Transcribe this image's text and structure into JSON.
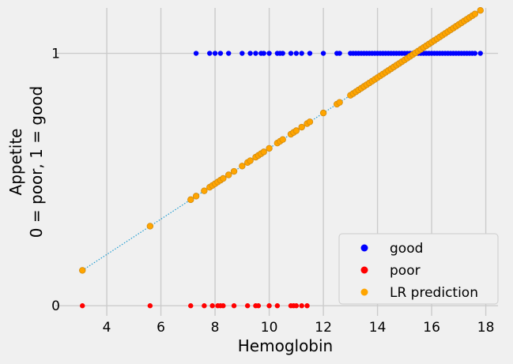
{
  "chart_data": {
    "type": "scatter",
    "title": "",
    "xlabel": "Hemoglobin",
    "ylabel_lines": [
      "Appetite",
      "0 = poor, 1 = good"
    ],
    "xlim": [
      2.1,
      18.45
    ],
    "ylim": [
      -0.04,
      1.18
    ],
    "xticks": [
      4,
      6,
      8,
      10,
      12,
      14,
      16,
      18
    ],
    "yticks": [
      0,
      1
    ],
    "grid": true,
    "legend_position": "bottom-right",
    "colors": {
      "good": "#0000ff",
      "poor": "#ff0000",
      "lr": "#ffa500",
      "lr_edge": "#d08a10",
      "line": "#1f9bd0",
      "grid": "#cbcbcb",
      "background": "#f0f0f0"
    },
    "series": [
      {
        "name": "good",
        "y": 1,
        "x": [
          7.3,
          7.8,
          8.0,
          8.2,
          8.5,
          9.0,
          9.3,
          9.5,
          9.7,
          9.8,
          10.0,
          10.3,
          10.4,
          10.5,
          10.8,
          11.0,
          11.2,
          11.5,
          12.0,
          12.5,
          12.6,
          13.0,
          13.1,
          13.2,
          13.3,
          13.4,
          13.5,
          13.6,
          13.7,
          13.8,
          13.9,
          14.0,
          14.1,
          14.2,
          14.3,
          14.4,
          14.5,
          14.6,
          14.7,
          14.8,
          14.9,
          15.0,
          15.1,
          15.2,
          15.3,
          15.4,
          15.5,
          15.6,
          15.7,
          15.8,
          15.9,
          16.0,
          16.1,
          16.2,
          16.3,
          16.4,
          16.5,
          16.6,
          16.7,
          16.8,
          16.9,
          17.0,
          17.1,
          17.2,
          17.3,
          17.4,
          17.5,
          17.6,
          17.8
        ]
      },
      {
        "name": "poor",
        "y": 0,
        "x": [
          3.1,
          5.6,
          7.1,
          7.6,
          7.9,
          8.1,
          8.2,
          8.3,
          8.7,
          9.2,
          9.5,
          9.6,
          10.0,
          10.3,
          10.8,
          10.9,
          11.0,
          11.2,
          11.4
        ]
      },
      {
        "name": "LR prediction",
        "line": {
          "x1": 3.1,
          "y1": 0.14,
          "x2": 17.8,
          "y2": 1.17
        },
        "x": [
          3.1,
          5.6,
          7.1,
          7.3,
          7.6,
          7.8,
          7.9,
          8.0,
          8.1,
          8.2,
          8.3,
          8.5,
          8.7,
          9.0,
          9.2,
          9.3,
          9.5,
          9.6,
          9.7,
          9.8,
          10.0,
          10.3,
          10.4,
          10.5,
          10.8,
          10.9,
          11.0,
          11.2,
          11.4,
          11.5,
          12.0,
          12.5,
          12.6,
          13.0,
          13.1,
          13.2,
          13.3,
          13.4,
          13.5,
          13.6,
          13.7,
          13.8,
          13.9,
          14.0,
          14.1,
          14.2,
          14.3,
          14.4,
          14.5,
          14.6,
          14.7,
          14.8,
          14.9,
          15.0,
          15.1,
          15.2,
          15.3,
          15.4,
          15.5,
          15.6,
          15.7,
          15.8,
          15.9,
          16.0,
          16.1,
          16.2,
          16.3,
          16.4,
          16.5,
          16.6,
          16.7,
          16.8,
          16.9,
          17.0,
          17.1,
          17.2,
          17.3,
          17.4,
          17.5,
          17.6,
          17.8
        ]
      }
    ]
  }
}
